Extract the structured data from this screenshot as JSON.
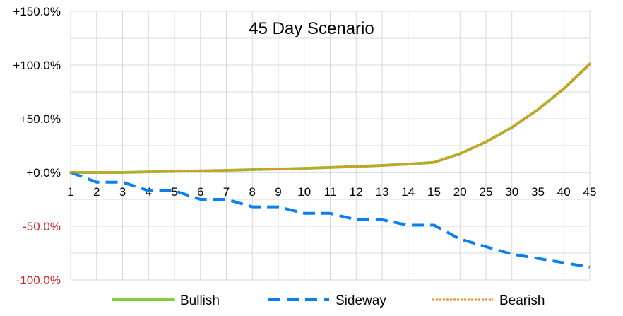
{
  "chart_data": {
    "type": "line",
    "title": "45 Day Scenario",
    "xlabel": "",
    "ylabel": "",
    "categories": [
      "1",
      "2",
      "3",
      "4",
      "5",
      "6",
      "7",
      "8",
      "9",
      "10",
      "11",
      "12",
      "13",
      "14",
      "15",
      "20",
      "25",
      "30",
      "35",
      "40",
      "45"
    ],
    "ylim": [
      -100,
      150
    ],
    "yticks": [
      150,
      100,
      50,
      0,
      -50,
      -100
    ],
    "ytick_labels": [
      "+150.0%",
      "+100.0%",
      "+50.0%",
      "+0.0%",
      "-50.0%",
      "-100.0%"
    ],
    "grid": true,
    "legend": "bottom",
    "series": [
      {
        "name": "Bullish",
        "color": "#7fd13b",
        "style": "solid",
        "values": [
          0,
          0,
          0,
          0.6,
          0.9,
          1.5,
          2.0,
          2.6,
          3.2,
          3.9,
          4.7,
          5.6,
          6.6,
          7.8,
          9.4,
          17.5,
          28.5,
          42.0,
          58.5,
          78.0,
          101.0
        ]
      },
      {
        "name": "Sideway",
        "color": "#0a7ff0",
        "style": "dashed",
        "values": [
          0,
          -9,
          -9,
          -17,
          -17,
          -25,
          -25,
          -32,
          -32,
          -38,
          -38,
          -44,
          -44,
          -49,
          -49,
          -62,
          -69,
          -76,
          -80,
          -84,
          -88
        ]
      },
      {
        "name": "Bearish",
        "color": "#ff7f1f",
        "style": "dotted",
        "values": [
          0,
          0,
          0,
          0.6,
          0.9,
          1.5,
          2.0,
          2.6,
          3.2,
          3.9,
          4.7,
          5.6,
          6.6,
          7.8,
          9.4,
          17.5,
          28.5,
          42.0,
          58.5,
          78.0,
          101.0
        ]
      }
    ]
  }
}
